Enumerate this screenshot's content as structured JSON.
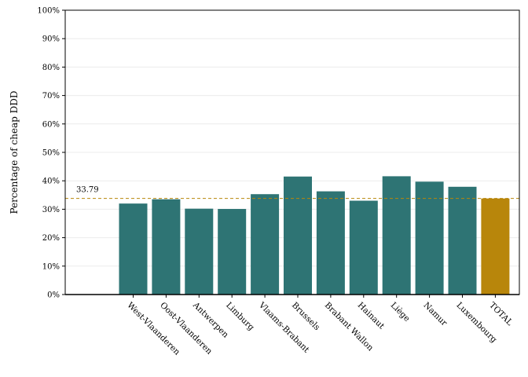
{
  "chart_data": {
    "type": "bar",
    "title": "",
    "xlabel": "",
    "ylabel": "Percentage of cheap DDD",
    "ylim": [
      0,
      100
    ],
    "yticks": [
      0,
      10,
      20,
      30,
      40,
      50,
      60,
      70,
      80,
      90,
      100
    ],
    "ytick_suffix": "%",
    "grid": true,
    "categories": [
      "West-Vlaanderen",
      "Oost-Vlaanderen",
      "Antwerpen",
      "Limburg",
      "Vlaams-Brabant",
      "Brussels",
      "Brabant Wallon",
      "Hainaut",
      "Liège",
      "Namur",
      "Luxembourg",
      "TOTAL"
    ],
    "values": [
      32.0,
      33.5,
      30.2,
      30.1,
      35.3,
      41.5,
      36.3,
      33.0,
      41.6,
      39.7,
      37.9,
      33.79
    ],
    "colors": [
      "#2e7474",
      "#2e7474",
      "#2e7474",
      "#2e7474",
      "#2e7474",
      "#2e7474",
      "#2e7474",
      "#2e7474",
      "#2e7474",
      "#2e7474",
      "#2e7474",
      "#b8860b"
    ],
    "reference_line": {
      "value": 33.79,
      "label": "33.79",
      "color": "#b8860b",
      "style": "dashed"
    }
  }
}
